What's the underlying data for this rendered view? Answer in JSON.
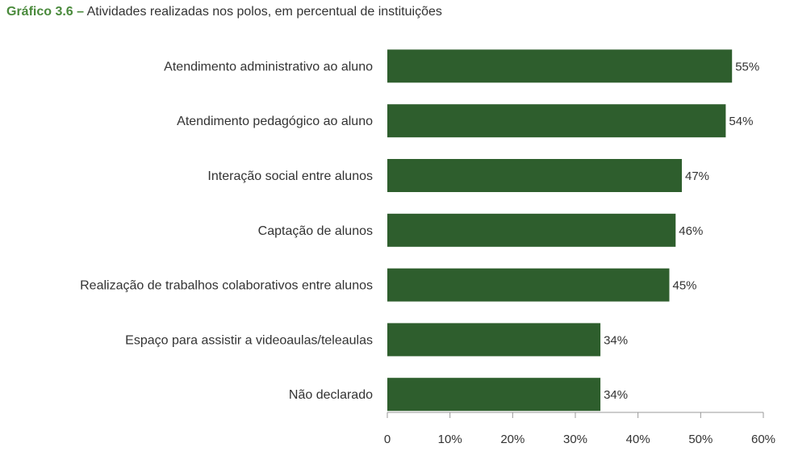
{
  "title": {
    "prefix": "Gráfico 3.6",
    "dash": "–",
    "text": "Atividades realizadas nos polos, em percentual de instituições"
  },
  "colors": {
    "bar": "#2e5e2d",
    "axis": "#999999",
    "title_accent": "#4a8a3c"
  },
  "chart_data": {
    "type": "bar",
    "orientation": "horizontal",
    "title": "Atividades realizadas nos polos, em percentual de instituições",
    "categories": [
      "Atendimento administrativo ao aluno",
      "Atendimento pedagógico ao aluno",
      "Interação social entre alunos",
      "Captação de alunos",
      "Realização de trabalhos colaborativos entre alunos",
      "Espaço para assistir a videoaulas/teleaulas",
      "Não declarado"
    ],
    "values": [
      55,
      54,
      47,
      46,
      45,
      34,
      34
    ],
    "value_labels": [
      "55%",
      "54%",
      "47%",
      "46%",
      "45%",
      "34%",
      "34%"
    ],
    "xlim": [
      0,
      60
    ],
    "xticks": [
      0,
      10,
      20,
      30,
      40,
      50,
      60
    ],
    "xtick_labels": [
      "0",
      "10%",
      "20%",
      "30%",
      "40%",
      "50%",
      "60%"
    ],
    "xlabel": "",
    "ylabel": "",
    "grid": false,
    "legend": "none"
  }
}
